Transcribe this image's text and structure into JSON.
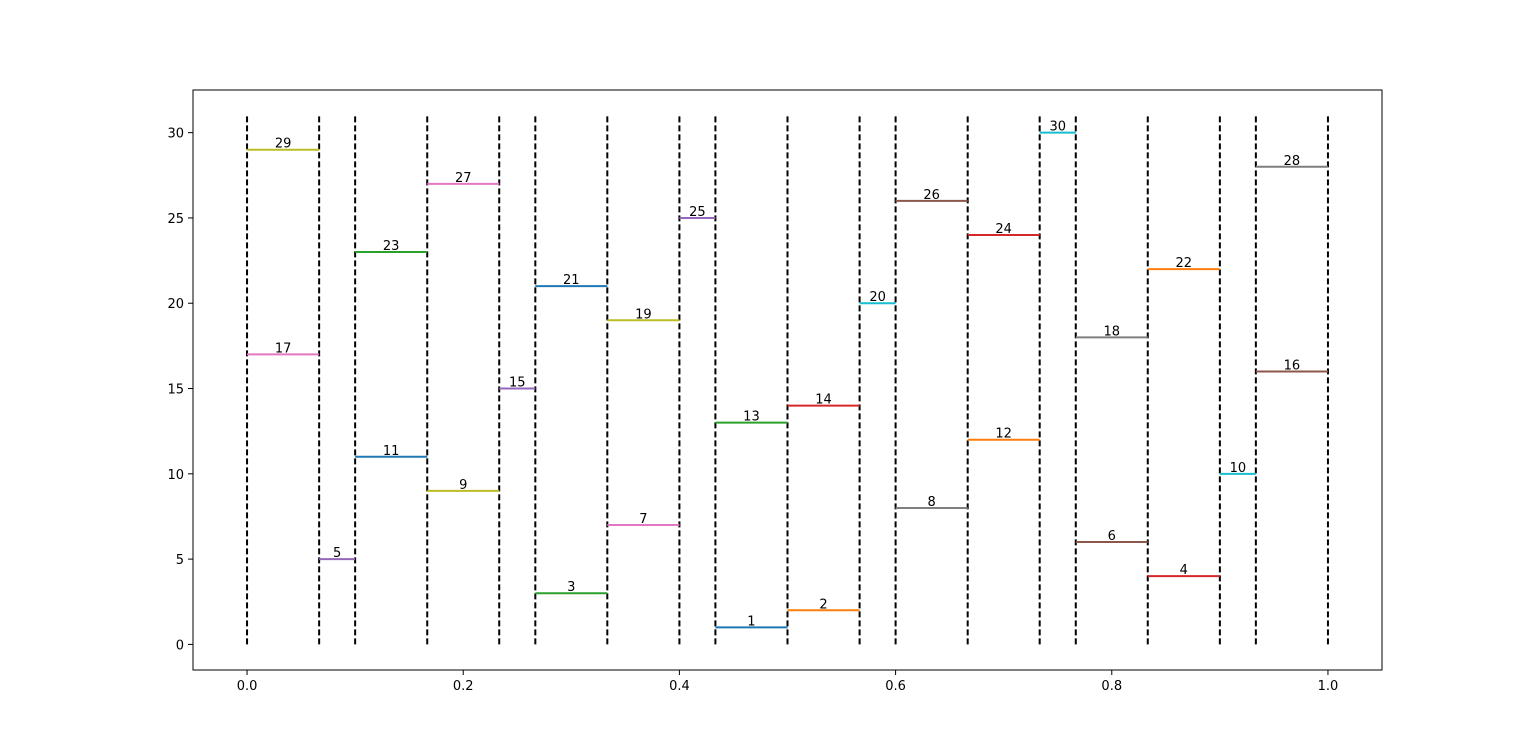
{
  "chart_data": {
    "type": "segments",
    "xlim": [
      -0.05,
      1.05
    ],
    "ylim": [
      -1.5,
      32.5
    ],
    "xticks": [
      {
        "value": 0,
        "label": "0.0"
      },
      0.2,
      0.4,
      0.6,
      0.8,
      {
        "value": 1,
        "label": "1.0"
      }
    ],
    "yticks": [
      0,
      5,
      10,
      15,
      20,
      25,
      30
    ],
    "boundaries": {
      "x": [
        0,
        0.0667,
        0.1,
        0.1667,
        0.2333,
        0.2667,
        0.3333,
        0.4,
        0.4333,
        0.5,
        0.5667,
        0.6,
        0.6667,
        0.7333,
        0.7667,
        0.8333,
        0.9,
        0.9333,
        1
      ],
      "ymin": 0,
      "ymax": 31,
      "color": "#000000"
    },
    "segments": [
      {
        "x0": 0.4333,
        "x1": 0.5,
        "y": 1,
        "color": "#1f77b4"
      },
      {
        "x0": 0.5,
        "x1": 0.5667,
        "y": 2,
        "color": "#ff7f0e"
      },
      {
        "x0": 0.2667,
        "x1": 0.3333,
        "y": 3,
        "color": "#2ca02c"
      },
      {
        "x0": 0.8333,
        "x1": 0.9,
        "y": 4,
        "color": "#d62728"
      },
      {
        "x0": 0.0667,
        "x1": 0.1,
        "y": 5,
        "color": "#9467bd"
      },
      {
        "x0": 0.7667,
        "x1": 0.8333,
        "y": 6,
        "color": "#8c564b"
      },
      {
        "x0": 0.3333,
        "x1": 0.4,
        "y": 7,
        "color": "#e377c2"
      },
      {
        "x0": 0.6,
        "x1": 0.6667,
        "y": 8,
        "color": "#7f7f7f"
      },
      {
        "x0": 0.1667,
        "x1": 0.2333,
        "y": 9,
        "color": "#bcbd22"
      },
      {
        "x0": 0.9,
        "x1": 0.9333,
        "y": 10,
        "color": "#17becf"
      },
      {
        "x0": 0.1,
        "x1": 0.1667,
        "y": 11,
        "color": "#1f77b4"
      },
      {
        "x0": 0.6667,
        "x1": 0.7333,
        "y": 12,
        "color": "#ff7f0e"
      },
      {
        "x0": 0.4333,
        "x1": 0.5,
        "y": 13,
        "color": "#2ca02c"
      },
      {
        "x0": 0.5,
        "x1": 0.5667,
        "y": 14,
        "color": "#d62728"
      },
      {
        "x0": 0.2333,
        "x1": 0.2667,
        "y": 15,
        "color": "#9467bd"
      },
      {
        "x0": 0.9333,
        "x1": 1,
        "y": 16,
        "color": "#8c564b"
      },
      {
        "x0": 0,
        "x1": 0.0667,
        "y": 17,
        "color": "#e377c2"
      },
      {
        "x0": 0.7667,
        "x1": 0.8333,
        "y": 18,
        "color": "#7f7f7f"
      },
      {
        "x0": 0.3333,
        "x1": 0.4,
        "y": 19,
        "color": "#bcbd22"
      },
      {
        "x0": 0.5667,
        "x1": 0.6,
        "y": 20,
        "color": "#17becf"
      },
      {
        "x0": 0.2667,
        "x1": 0.3333,
        "y": 21,
        "color": "#1f77b4"
      },
      {
        "x0": 0.8333,
        "x1": 0.9,
        "y": 22,
        "color": "#ff7f0e"
      },
      {
        "x0": 0.1,
        "x1": 0.1667,
        "y": 23,
        "color": "#2ca02c"
      },
      {
        "x0": 0.6667,
        "x1": 0.7333,
        "y": 24,
        "color": "#d62728"
      },
      {
        "x0": 0.4,
        "x1": 0.4333,
        "y": 25,
        "color": "#9467bd"
      },
      {
        "x0": 0.6,
        "x1": 0.6667,
        "y": 26,
        "color": "#8c564b"
      },
      {
        "x0": 0.1667,
        "x1": 0.2333,
        "y": 27,
        "color": "#e377c2"
      },
      {
        "x0": 0.9333,
        "x1": 1,
        "y": 28,
        "color": "#7f7f7f"
      },
      {
        "x0": 0,
        "x1": 0.0667,
        "y": 29,
        "color": "#bcbd22"
      },
      {
        "x0": 0.7333,
        "x1": 0.7667,
        "y": 30,
        "color": "#17becf"
      }
    ]
  }
}
